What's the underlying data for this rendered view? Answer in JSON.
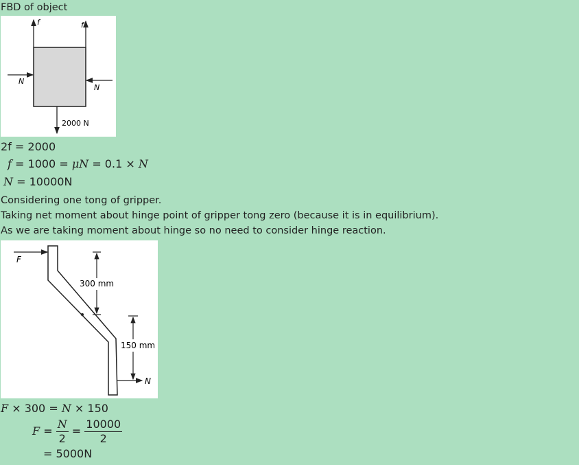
{
  "heading": "FBD of object",
  "figure1": {
    "labels": {
      "f_left": "f",
      "f_right": "f",
      "n_left": "N",
      "n_right": "N",
      "weight": "2000 N"
    }
  },
  "equations1": {
    "line1_lhs": "2f",
    "line1_rhs": "= 2000",
    "line2_f": "f",
    "line2_mid": "= 1000 =",
    "line2_mu": "μN",
    "line2_rhs": "= 0.1 ×",
    "line2_N": "N",
    "line3_N": "N",
    "line3_rhs": "= 10000N"
  },
  "paragraph": {
    "line1": "Considering one tong of gripper.",
    "line2": "Taking net moment about hinge point of gripper tong zero (because it is in equilibrium).",
    "line3": "As we are taking moment about hinge so no need to consider hinge reaction."
  },
  "figure2": {
    "labels": {
      "force": "F",
      "dim_300": "300 mm",
      "dim_150": "150 mm",
      "reaction": "N"
    }
  },
  "equations2": {
    "line1_F": "F",
    "line1_mid": "× 300 =",
    "line1_N": "N",
    "line1_rhs": "× 150",
    "line2_F": "F",
    "line2_eq1": "=",
    "line2_num1": "N",
    "line2_den1": "2",
    "line2_eq2": "=",
    "line2_num2": "10000",
    "line2_den2": "2",
    "line3": "= 5000N"
  }
}
